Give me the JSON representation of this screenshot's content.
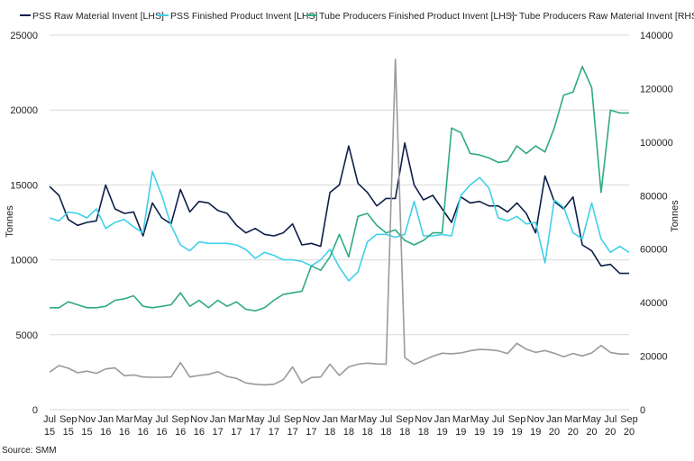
{
  "chart_data": {
    "type": "line",
    "title": "",
    "source": "Source: SMM",
    "ylabel_left": "Tonnes",
    "ylabel_right": "Tonnes",
    "ylim_left": [
      0,
      25000
    ],
    "ylim_right": [
      0,
      140000
    ],
    "yticks_left": [
      "0",
      "5000",
      "10000",
      "15000",
      "20000",
      "25000"
    ],
    "yticks_right": [
      "0",
      "20000",
      "40000",
      "60000",
      "80000",
      "100000",
      "120000",
      "140000"
    ],
    "grid": true,
    "legend_position": "top",
    "x_tick_labels": [
      [
        "Jul",
        "15"
      ],
      [
        "Sep",
        "15"
      ],
      [
        "Nov",
        "15"
      ],
      [
        "Jan",
        "16"
      ],
      [
        "Mar",
        "16"
      ],
      [
        "May",
        "16"
      ],
      [
        "Jul",
        "16"
      ],
      [
        "Sep",
        "16"
      ],
      [
        "Nov",
        "16"
      ],
      [
        "Jan",
        "17"
      ],
      [
        "Mar",
        "17"
      ],
      [
        "May",
        "17"
      ],
      [
        "Jul",
        "17"
      ],
      [
        "Sep",
        "17"
      ],
      [
        "Nov",
        "17"
      ],
      [
        "Jan",
        "18"
      ],
      [
        "Mar",
        "18"
      ],
      [
        "May",
        "18"
      ],
      [
        "Jul",
        "18"
      ],
      [
        "Sep",
        "18"
      ],
      [
        "Nov",
        "18"
      ],
      [
        "Jan",
        "19"
      ],
      [
        "Mar",
        "19"
      ],
      [
        "May",
        "19"
      ],
      [
        "Jul",
        "19"
      ],
      [
        "Sep",
        "19"
      ],
      [
        "Nov",
        "19"
      ],
      [
        "Jan",
        "20"
      ],
      [
        "Mar",
        "20"
      ],
      [
        "May",
        "20"
      ],
      [
        "Jul",
        "20"
      ],
      [
        "Sep",
        "20"
      ]
    ],
    "x": [
      "Jul 15",
      "Aug 15",
      "Sep 15",
      "Oct 15",
      "Nov 15",
      "Dec 15",
      "Jan 16",
      "Feb 16",
      "Mar 16",
      "Apr 16",
      "May 16",
      "Jun 16",
      "Jul 16",
      "Aug 16",
      "Sep 16",
      "Oct 16",
      "Nov 16",
      "Dec 16",
      "Jan 17",
      "Feb 17",
      "Mar 17",
      "Apr 17",
      "May 17",
      "Jun 17",
      "Jul 17",
      "Aug 17",
      "Sep 17",
      "Oct 17",
      "Nov 17",
      "Dec 17",
      "Jan 18",
      "Feb 18",
      "Mar 18",
      "Apr 18",
      "May 18",
      "Jun 18",
      "Jul 18",
      "Aug 18",
      "Sep 18",
      "Oct 18",
      "Nov 18",
      "Dec 18",
      "Jan 19",
      "Feb 19",
      "Mar 19",
      "Apr 19",
      "May 19",
      "Jun 19",
      "Jul 19",
      "Aug 19",
      "Sep 19",
      "Oct 19",
      "Nov 19",
      "Dec 19",
      "Jan 20",
      "Feb 20",
      "Mar 20",
      "Apr 20",
      "May 20",
      "Jun 20",
      "Jul 20",
      "Aug 20",
      "Sep 20"
    ],
    "series": [
      {
        "name": "PSS Raw Material Invent [LHS]",
        "axis": "left",
        "color": "#0d1f4a",
        "values": [
          14900,
          14300,
          12700,
          12300,
          12500,
          12600,
          15000,
          13400,
          13100,
          13200,
          11600,
          13800,
          12800,
          12400,
          14700,
          13200,
          13900,
          13800,
          13300,
          13100,
          12300,
          11800,
          12100,
          11700,
          11600,
          11800,
          12400,
          11000,
          11100,
          10900,
          14500,
          15000,
          17600,
          15100,
          14500,
          13600,
          14100,
          14100,
          17800,
          15000,
          14000,
          14300,
          13400,
          12500,
          14200,
          13800,
          13900,
          13600,
          13600,
          13200,
          13800,
          13100,
          11800,
          15600,
          13900,
          13400,
          14200,
          11000,
          10600,
          9600,
          9700,
          9100,
          9100
        ]
      },
      {
        "name": "PSS Finished Product Invent [LHS]",
        "axis": "left",
        "color": "#3fd0ea",
        "values": [
          12800,
          12600,
          13200,
          13100,
          12800,
          13400,
          12100,
          12500,
          12700,
          12200,
          11800,
          15900,
          14300,
          12300,
          11000,
          10600,
          11200,
          11100,
          11100,
          11100,
          11000,
          10700,
          10100,
          10500,
          10300,
          10000,
          10000,
          9900,
          9600,
          10000,
          10700,
          9500,
          8600,
          9200,
          11200,
          11700,
          11700,
          11500,
          11700,
          13900,
          11600,
          11600,
          11700,
          11600,
          14300,
          15000,
          15500,
          14800,
          12800,
          12600,
          12900,
          12400,
          12500,
          9800,
          14000,
          13500,
          11800,
          11400,
          13800,
          11400,
          10500,
          10900,
          10500
        ]
      },
      {
        "name": "Tube Producers Finished Product Invent [LHS]",
        "axis": "left",
        "color": "#2eaa84",
        "values": [
          6800,
          6800,
          7200,
          7000,
          6800,
          6800,
          6900,
          7300,
          7400,
          7600,
          6900,
          6800,
          6900,
          7000,
          7800,
          6900,
          7300,
          6800,
          7300,
          6900,
          7200,
          6700,
          6600,
          6800,
          7300,
          7700,
          7800,
          7900,
          9600,
          9300,
          10200,
          11700,
          10200,
          12900,
          13100,
          12300,
          11800,
          12000,
          11300,
          11000,
          11300,
          11800,
          11800,
          18800,
          18500,
          17100,
          17000,
          16800,
          16500,
          16600,
          17600,
          17100,
          17600,
          17200,
          18800,
          21000,
          21200,
          22900,
          21500,
          14500,
          20000,
          19800,
          19800
        ]
      },
      {
        "name": "Tube Producers Raw Material Invent [RHS]",
        "axis": "right",
        "color": "#9a9a9a",
        "values": [
          14000,
          16500,
          15500,
          13800,
          14400,
          13600,
          15200,
          15600,
          12700,
          13000,
          12200,
          12100,
          12100,
          12200,
          17600,
          12200,
          12800,
          13200,
          14200,
          12400,
          11700,
          10000,
          9500,
          9300,
          9500,
          11200,
          16000,
          10000,
          12000,
          12200,
          17000,
          12800,
          16000,
          17000,
          17400,
          17100,
          17000,
          131000,
          19500,
          17000,
          18400,
          20000,
          21100,
          20900,
          21200,
          22000,
          22500,
          22400,
          22000,
          21000,
          24800,
          22600,
          21400,
          22100,
          21100,
          19800,
          21000,
          20100,
          21200,
          24000,
          21400,
          20800,
          20800
        ]
      }
    ]
  }
}
